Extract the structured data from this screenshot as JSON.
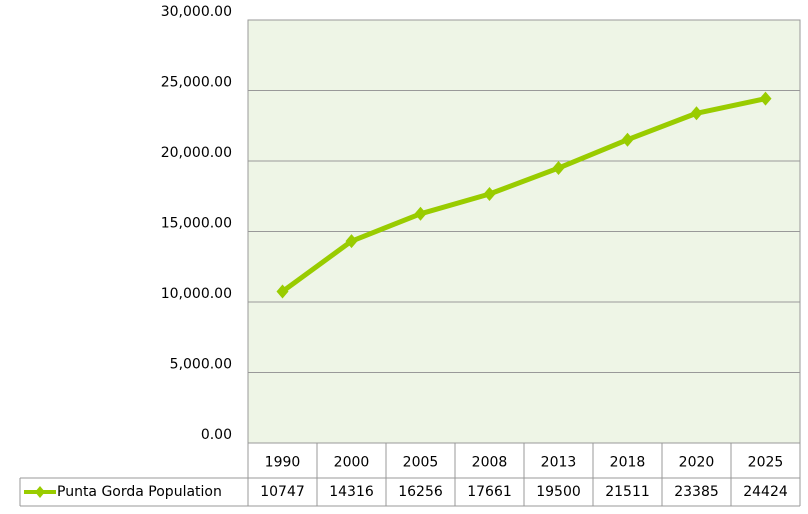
{
  "chart_data": {
    "type": "line",
    "categories": [
      "1990",
      "2000",
      "2005",
      "2008",
      "2013",
      "2018",
      "2020",
      "2025"
    ],
    "series": [
      {
        "name": "Punta Gorda Population",
        "color": "#99cc00",
        "values": [
          10747,
          14316,
          16256,
          17661,
          19500,
          21511,
          23385,
          24424
        ]
      }
    ],
    "ylim": [
      0,
      30000
    ],
    "yticks": [
      {
        "value": 0,
        "label": "0.00"
      },
      {
        "value": 5000,
        "label": "5,000.00"
      },
      {
        "value": 10000,
        "label": "10,000.00"
      },
      {
        "value": 15000,
        "label": "15,000.00"
      },
      {
        "value": 20000,
        "label": "20,000.00"
      },
      {
        "value": 25000,
        "label": "25,000.00"
      },
      {
        "value": 30000,
        "label": "30,000.00"
      }
    ],
    "grid": true
  }
}
